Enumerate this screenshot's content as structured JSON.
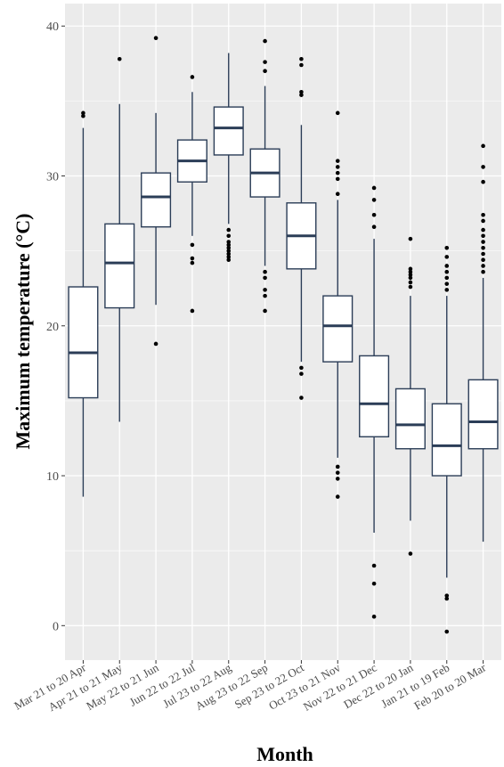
{
  "chart_data": {
    "type": "box",
    "xlabel": "Month",
    "ylabel": "Maximum temperature (°C)",
    "ylim": [
      -2.3,
      41.5
    ],
    "yticks": [
      0,
      10,
      20,
      30,
      40
    ],
    "grid": true,
    "colors": {
      "panel": "#ebebeb",
      "grid": "#ffffff",
      "box": "#2b3d57",
      "outlier": "#000000"
    },
    "categories": [
      "Mar 21 to 20 Apr",
      "Apr 21 to 21 May",
      "May 22 to 21 Jun",
      "Jun 22 to 22 Jul",
      "Jul 23 to 22 Aug",
      "Aug 23 to 22 Sep",
      "Sep 23 to 22 Oct",
      "Oct 23 to 21 Nov",
      "Nov 22 to 21 Dec",
      "Dec 22 to 20 Jan",
      "Jan 21 to 19 Feb",
      "Feb 20 to 20 Mar"
    ],
    "boxes": [
      {
        "whisker_low": 8.6,
        "q1": 15.2,
        "median": 18.2,
        "q3": 22.6,
        "whisker_high": 33.2,
        "outliers": [
          34.0,
          34.2
        ]
      },
      {
        "whisker_low": 13.6,
        "q1": 21.2,
        "median": 24.2,
        "q3": 26.8,
        "whisker_high": 34.8,
        "outliers": [
          37.8
        ]
      },
      {
        "whisker_low": 21.4,
        "q1": 26.6,
        "median": 28.6,
        "q3": 30.2,
        "whisker_high": 34.2,
        "outliers": [
          18.8,
          39.2
        ]
      },
      {
        "whisker_low": 26.0,
        "q1": 29.6,
        "median": 31.0,
        "q3": 32.4,
        "whisker_high": 35.6,
        "outliers": [
          21.0,
          24.2,
          24.5,
          25.4,
          36.6
        ]
      },
      {
        "whisker_low": 26.8,
        "q1": 31.4,
        "median": 33.2,
        "q3": 34.6,
        "whisker_high": 38.2,
        "outliers": [
          24.4,
          24.6,
          24.8,
          25.0,
          25.2,
          25.4,
          25.6,
          26.0,
          26.4
        ]
      },
      {
        "whisker_low": 24.0,
        "q1": 28.6,
        "median": 30.2,
        "q3": 31.8,
        "whisker_high": 36.0,
        "outliers": [
          21.0,
          22.0,
          22.4,
          23.2,
          23.6,
          37.0,
          37.6,
          39.0
        ]
      },
      {
        "whisker_low": 17.6,
        "q1": 23.8,
        "median": 26.0,
        "q3": 28.2,
        "whisker_high": 33.4,
        "outliers": [
          15.2,
          16.8,
          17.2,
          35.4,
          35.6,
          37.4,
          37.8
        ]
      },
      {
        "whisker_low": 11.2,
        "q1": 17.6,
        "median": 20.0,
        "q3": 22.0,
        "whisker_high": 28.4,
        "outliers": [
          8.6,
          9.8,
          10.2,
          10.6,
          28.8,
          29.8,
          30.2,
          30.6,
          31.0,
          34.2
        ]
      },
      {
        "whisker_low": 6.2,
        "q1": 12.6,
        "median": 14.8,
        "q3": 18.0,
        "whisker_high": 25.8,
        "outliers": [
          0.6,
          2.8,
          4.0,
          26.6,
          27.4,
          28.4,
          29.2
        ]
      },
      {
        "whisker_low": 7.0,
        "q1": 11.8,
        "median": 13.4,
        "q3": 15.8,
        "whisker_high": 22.0,
        "outliers": [
          4.8,
          22.6,
          22.9,
          23.2,
          23.4,
          23.6,
          23.8,
          25.8
        ]
      },
      {
        "whisker_low": 3.2,
        "q1": 10.0,
        "median": 12.0,
        "q3": 14.8,
        "whisker_high": 22.0,
        "outliers": [
          -0.4,
          1.8,
          2.0,
          22.4,
          22.8,
          23.2,
          23.6,
          24.0,
          24.6,
          25.2
        ]
      },
      {
        "whisker_low": 5.6,
        "q1": 11.8,
        "median": 13.6,
        "q3": 16.4,
        "whisker_high": 23.2,
        "outliers": [
          23.6,
          24.0,
          24.4,
          24.8,
          25.2,
          25.6,
          26.0,
          26.4,
          27.0,
          27.4,
          29.6,
          30.6,
          32.0
        ]
      }
    ]
  }
}
